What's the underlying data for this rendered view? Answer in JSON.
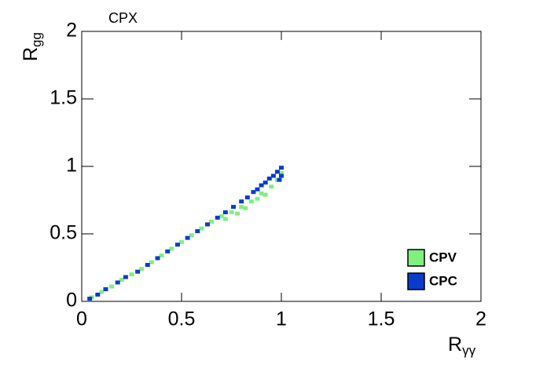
{
  "chart_data": {
    "type": "scatter",
    "title": "CPX",
    "xlabel": {
      "text": "R",
      "subscript": "γγ"
    },
    "ylabel": {
      "text": "R",
      "subscript": "gg"
    },
    "xlim": [
      0,
      2
    ],
    "ylim": [
      0,
      2
    ],
    "xticks": [
      0,
      0.5,
      1,
      1.5,
      2
    ],
    "yticks": [
      0,
      0.5,
      1,
      1.5,
      2
    ],
    "legend": "bottom-right",
    "series": [
      {
        "name": "CPV",
        "color": "#80f080",
        "x": [
          0.05,
          0.1,
          0.15,
          0.2,
          0.25,
          0.3,
          0.35,
          0.4,
          0.45,
          0.5,
          0.55,
          0.6,
          0.65,
          0.7,
          0.72,
          0.75,
          0.78,
          0.8,
          0.82,
          0.85,
          0.88,
          0.9,
          0.92,
          0.95,
          0.98,
          1.0
        ],
        "values": [
          0.03,
          0.07,
          0.11,
          0.16,
          0.2,
          0.24,
          0.29,
          0.34,
          0.39,
          0.44,
          0.49,
          0.54,
          0.59,
          0.63,
          0.61,
          0.66,
          0.65,
          0.7,
          0.69,
          0.74,
          0.76,
          0.8,
          0.79,
          0.85,
          0.9,
          0.95
        ]
      },
      {
        "name": "CPC",
        "color": "#0a3ccc",
        "x": [
          0.04,
          0.08,
          0.12,
          0.18,
          0.22,
          0.28,
          0.33,
          0.38,
          0.43,
          0.48,
          0.53,
          0.58,
          0.63,
          0.68,
          0.72,
          0.76,
          0.8,
          0.83,
          0.86,
          0.88,
          0.9,
          0.92,
          0.94,
          0.96,
          0.98,
          1.0,
          1.0,
          0.99
        ],
        "values": [
          0.02,
          0.05,
          0.09,
          0.14,
          0.18,
          0.22,
          0.27,
          0.32,
          0.37,
          0.42,
          0.47,
          0.52,
          0.57,
          0.62,
          0.66,
          0.7,
          0.74,
          0.77,
          0.81,
          0.83,
          0.86,
          0.88,
          0.91,
          0.93,
          0.96,
          0.99,
          0.93,
          0.9
        ]
      }
    ]
  }
}
